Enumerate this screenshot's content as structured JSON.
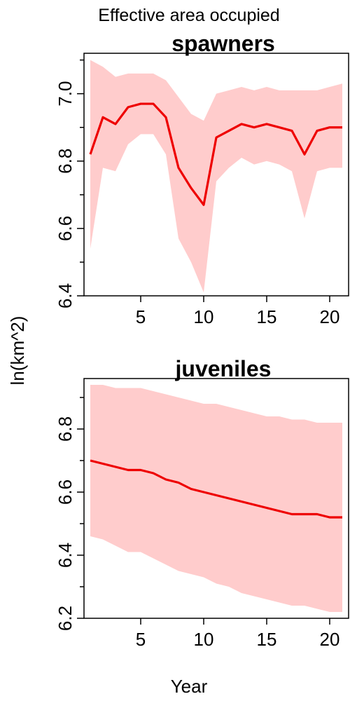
{
  "figure": {
    "title": "Effective area occupied",
    "ylabel": "ln(km^2)",
    "xlabel": "Year"
  },
  "chart_data": [
    {
      "type": "line",
      "title": "spawners",
      "xlabel": "Year",
      "ylabel": "ln(km^2)",
      "xlim": [
        0.5,
        21.5
      ],
      "ylim": [
        6.4,
        7.12
      ],
      "xticks": [
        5,
        10,
        15,
        20
      ],
      "xtick_labels": [
        "5",
        "10",
        "15",
        "20"
      ],
      "yticks": [
        6.4,
        6.6,
        6.8,
        7.0
      ],
      "ytick_labels": [
        "6.4",
        "6.6",
        "6.8",
        "7.0"
      ],
      "minor_yticks": [
        6.5,
        6.7,
        6.9,
        7.1
      ],
      "grid": false,
      "colors": {
        "line": "#ee0000",
        "band": "#ffcccc"
      },
      "x": [
        1,
        2,
        3,
        4,
        5,
        6,
        7,
        8,
        9,
        10,
        11,
        12,
        13,
        14,
        15,
        16,
        17,
        18,
        19,
        20,
        21
      ],
      "series": [
        {
          "values": [
            6.82,
            6.93,
            6.91,
            6.96,
            6.97,
            6.97,
            6.93,
            6.78,
            6.72,
            6.67,
            6.87,
            6.89,
            6.91,
            6.9,
            6.91,
            6.9,
            6.89,
            6.82,
            6.89,
            6.9,
            6.9
          ]
        }
      ],
      "band": {
        "lower": [
          6.54,
          6.78,
          6.77,
          6.85,
          6.88,
          6.88,
          6.82,
          6.57,
          6.5,
          6.41,
          6.74,
          6.78,
          6.81,
          6.79,
          6.8,
          6.79,
          6.77,
          6.63,
          6.77,
          6.78,
          6.78
        ],
        "upper": [
          7.1,
          7.08,
          7.05,
          7.06,
          7.06,
          7.06,
          7.04,
          6.99,
          6.94,
          6.92,
          7.0,
          7.01,
          7.02,
          7.01,
          7.02,
          7.01,
          7.01,
          7.01,
          7.01,
          7.02,
          7.03
        ]
      }
    },
    {
      "type": "line",
      "title": "juveniles",
      "xlabel": "Year",
      "ylabel": "ln(km^2)",
      "xlim": [
        0.5,
        21.5
      ],
      "ylim": [
        6.2,
        6.96
      ],
      "xticks": [
        5,
        10,
        15,
        20
      ],
      "xtick_labels": [
        "5",
        "10",
        "15",
        "20"
      ],
      "yticks": [
        6.2,
        6.4,
        6.6,
        6.8
      ],
      "ytick_labels": [
        "6.2",
        "6.4",
        "6.6",
        "6.8"
      ],
      "minor_yticks": [
        6.3,
        6.5,
        6.7,
        6.9
      ],
      "grid": false,
      "colors": {
        "line": "#ee0000",
        "band": "#ffcccc"
      },
      "x": [
        1,
        2,
        3,
        4,
        5,
        6,
        7,
        8,
        9,
        10,
        11,
        12,
        13,
        14,
        15,
        16,
        17,
        18,
        19,
        20,
        21
      ],
      "series": [
        {
          "values": [
            6.7,
            6.69,
            6.68,
            6.67,
            6.67,
            6.66,
            6.64,
            6.63,
            6.61,
            6.6,
            6.59,
            6.58,
            6.57,
            6.56,
            6.55,
            6.54,
            6.53,
            6.53,
            6.53,
            6.52,
            6.52
          ]
        }
      ],
      "band": {
        "lower": [
          6.46,
          6.45,
          6.43,
          6.41,
          6.41,
          6.39,
          6.37,
          6.35,
          6.34,
          6.33,
          6.31,
          6.3,
          6.28,
          6.27,
          6.26,
          6.25,
          6.24,
          6.24,
          6.23,
          6.22,
          6.22
        ],
        "upper": [
          6.94,
          6.94,
          6.93,
          6.93,
          6.93,
          6.92,
          6.91,
          6.9,
          6.89,
          6.88,
          6.88,
          6.87,
          6.86,
          6.85,
          6.84,
          6.84,
          6.83,
          6.83,
          6.82,
          6.82,
          6.82
        ]
      }
    }
  ]
}
